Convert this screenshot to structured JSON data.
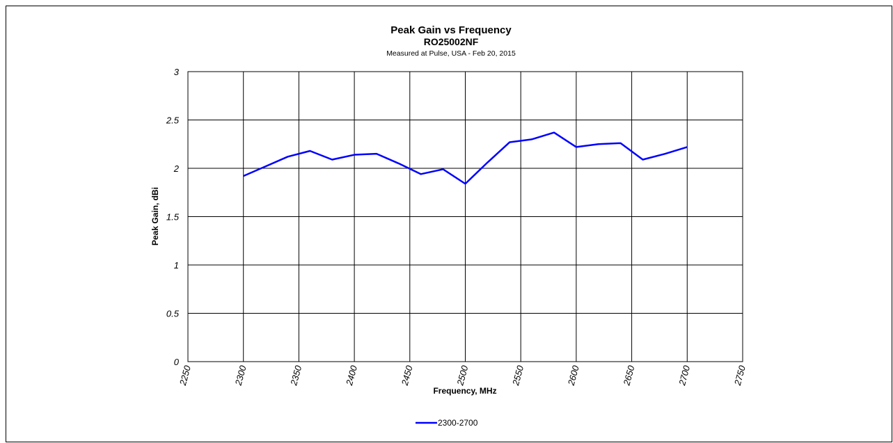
{
  "chart_data": {
    "type": "line",
    "title": "Peak Gain vs Frequency",
    "subtitle": "RO25002NF",
    "note": "Measured at Pulse, USA - Feb  20, 2015",
    "xlabel": "Frequency, MHz",
    "ylabel": "Peak Gain,  dBi",
    "x": [
      2300,
      2320,
      2340,
      2360,
      2380,
      2400,
      2420,
      2440,
      2460,
      2480,
      2500,
      2520,
      2540,
      2560,
      2580,
      2600,
      2620,
      2640,
      2660,
      2680,
      2700
    ],
    "series": [
      {
        "name": "2300-2700",
        "color": "#0000ff",
        "values": [
          1.92,
          2.02,
          2.12,
          2.18,
          2.09,
          2.14,
          2.15,
          2.05,
          1.94,
          1.99,
          1.84,
          2.06,
          2.27,
          2.3,
          2.37,
          2.22,
          2.25,
          2.26,
          2.09,
          2.15,
          2.22
        ]
      }
    ],
    "xlim": [
      2250,
      2750
    ],
    "xticks": [
      2250,
      2300,
      2350,
      2400,
      2450,
      2500,
      2550,
      2600,
      2650,
      2700,
      2750
    ],
    "ylim": [
      0,
      3
    ],
    "yticks": [
      0,
      0.5,
      1,
      1.5,
      2,
      2.5,
      3
    ],
    "grid": true,
    "legend": "bottom"
  }
}
